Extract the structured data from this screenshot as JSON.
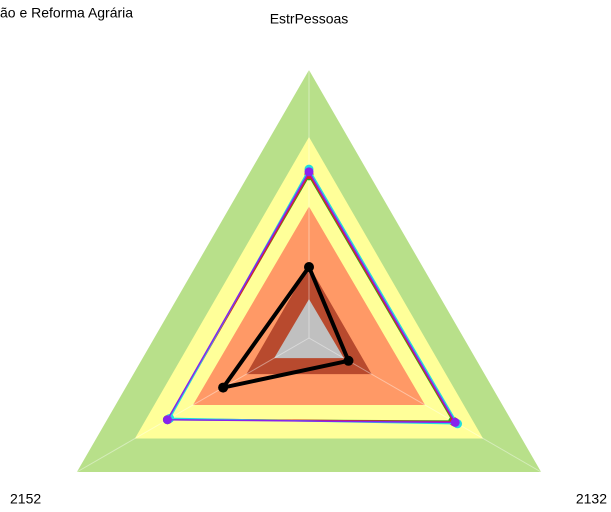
{
  "chart_data": {
    "type": "radar",
    "title": "ão e Reforma Agrária",
    "categories": [
      "EstrPessoas",
      "2132",
      "2152"
    ],
    "rlim": [
      0,
      100
    ],
    "bands": [
      {
        "color": "#b8e08a",
        "values": [
          100,
          100,
          100
        ]
      },
      {
        "color": "#ffff99",
        "values": [
          75,
          75,
          75
        ]
      },
      {
        "color": "#ff9966",
        "values": [
          49,
          50,
          50
        ]
      },
      {
        "color": "#b84a2e",
        "values": [
          27,
          27,
          27
        ]
      },
      {
        "color": "#c0c0c0",
        "values": [
          14.5,
          15,
          15
        ]
      }
    ],
    "series": [
      {
        "color": "#22aa22",
        "values": [
          60.5,
          62,
          61
        ]
      },
      {
        "color": "#dd2222",
        "values": [
          61,
          62.5,
          60.5
        ]
      },
      {
        "color": "#22dddd",
        "values": [
          63,
          64,
          60
        ]
      },
      {
        "color": "#8822ee",
        "values": [
          62,
          63,
          61
        ]
      },
      {
        "color": "#000000",
        "values": [
          26.5,
          17,
          37
        ]
      }
    ]
  }
}
